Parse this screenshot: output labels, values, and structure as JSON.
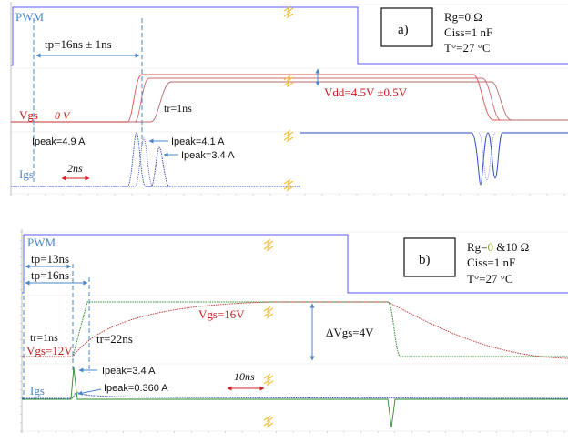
{
  "chart_data": [
    {
      "type": "line",
      "panel_label": "a)",
      "params": [
        "Rg=0 Ω",
        "Ciss=1 nF",
        "T°=27 °C"
      ],
      "labels": {
        "pwm": "PWM",
        "vgs": "Vgs",
        "vgs_init": "0 V",
        "igs": "Igs",
        "tp": "tp=16ns ± 1ns",
        "tr": "tr=1ns",
        "vdd": "Vdd=4.5V ±0.5V",
        "ipeak1": "Ipeak=4.9 A",
        "ipeak2": "Ipeak=4.1 A",
        "ipeak3": "Ipeak=3.4 A",
        "timescale": "2ns"
      },
      "series": [
        {
          "signal": "PWM",
          "color": "#5a5aff",
          "x": [
            0,
            3,
            3,
            393,
            393,
            624
          ],
          "y": [
            0,
            0,
            1,
            1,
            0,
            0
          ]
        },
        {
          "signal": "Vgs",
          "color": "#e05050",
          "x": [
            0,
            140,
            155,
            520,
            540,
            624
          ],
          "y": [
            0,
            0,
            4.5,
            4.5,
            0,
            0
          ]
        },
        {
          "signal": "Vgs",
          "color": "#d06070",
          "x": [
            0,
            148,
            163,
            530,
            548,
            624
          ],
          "y": [
            0,
            0,
            4.5,
            4.5,
            0,
            0
          ]
        },
        {
          "signal": "Vgs",
          "color": "#c07070",
          "x": [
            0,
            165,
            185,
            540,
            560,
            624
          ],
          "y": [
            0,
            0,
            4.5,
            4.5,
            0,
            0
          ]
        },
        {
          "signal": "Igs",
          "color": "#3050c0",
          "x": [
            0,
            140,
            150,
            160,
            520,
            528,
            536,
            624
          ],
          "y": [
            0,
            0,
            4.9,
            0,
            0,
            -4.9,
            0,
            0
          ]
        },
        {
          "signal": "Igs",
          "color": "#6060d0",
          "x": [
            0,
            148,
            157,
            168,
            528,
            537,
            546,
            624
          ],
          "y": [
            0,
            0,
            4.1,
            0,
            0,
            -4.1,
            0,
            0
          ]
        },
        {
          "signal": "Igs",
          "color": "#3030a0",
          "x": [
            0,
            165,
            173,
            185,
            538,
            547,
            556,
            624
          ],
          "y": [
            0,
            0,
            3.4,
            0,
            0,
            -3.4,
            0,
            0
          ]
        }
      ]
    },
    {
      "type": "line",
      "panel_label": "b)",
      "params": [
        "Rg=",
        "0",
        " &10 Ω",
        "Ciss=1 nF",
        "T°=27 °C"
      ],
      "labels": {
        "pwm": "PWM",
        "tp13": "tp=13ns",
        "tp16": "tp=16ns",
        "tr1": "tr=1ns",
        "tr22": "tr=22ns",
        "vgs16": "Vgs=16V",
        "vgs12": "Vgs=12V",
        "dvgs": "ΔVgs=4V",
        "igs": "Igs",
        "ipeak1": "Ipeak=3.4 A",
        "ipeak2": "Ipeak=0.360 A",
        "timescale": "10ns"
      },
      "series": [
        {
          "signal": "PWM",
          "color": "#5a5aff",
          "x": [
            0,
            22,
            22,
            382,
            382,
            624
          ],
          "y": [
            0,
            0,
            1,
            1,
            0,
            0
          ]
        },
        {
          "signal": "Vgs Rg=0",
          "color": "#2a8a2a",
          "x": [
            0,
            80,
            96,
            425,
            437,
            624
          ],
          "y": [
            12,
            12,
            16,
            16,
            12,
            12
          ]
        },
        {
          "signal": "Vgs Rg=10",
          "color": "#c04040",
          "x": [
            0,
            80,
            200,
            425,
            624
          ],
          "y": [
            12,
            12,
            15.6,
            16,
            12.4
          ]
        },
        {
          "signal": "Igs Rg=0",
          "color": "#2a8a2a",
          "x": [
            0,
            78,
            82,
            88,
            427,
            431,
            436,
            624
          ],
          "y": [
            0,
            0,
            3.4,
            0,
            0,
            -3.4,
            0,
            0
          ]
        },
        {
          "signal": "Igs Rg=10",
          "color": "#3050c0",
          "x": [
            0,
            80,
            84,
            624
          ],
          "y": [
            0,
            0,
            0.36,
            0
          ]
        }
      ]
    }
  ]
}
